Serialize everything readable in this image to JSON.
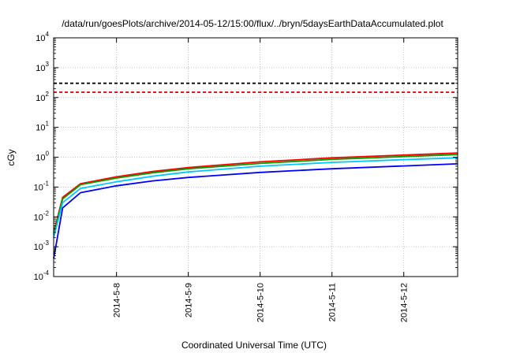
{
  "chart_data": {
    "type": "line",
    "title": "/data/run/goesPlots/archive/2014-05-12/15:00/flux/../bryn/5daysEarthDataAccumulated.plot",
    "xlabel": "Coordinated Universal Time (UTC)",
    "ylabel": "cGy",
    "yscale": "log",
    "ylim": [
      0.0001,
      10000
    ],
    "xlim": [
      "2014-05-07 03:00",
      "2014-05-12 18:00"
    ],
    "x_ticks": [
      "2014-5-8",
      "2014-5-9",
      "2014-5-10",
      "2014-5-11",
      "2014-5-12"
    ],
    "y_ticks": [
      {
        "base": "10",
        "exp": "-4",
        "value": 0.0001
      },
      {
        "base": "10",
        "exp": "-3",
        "value": 0.001
      },
      {
        "base": "10",
        "exp": "-2",
        "value": 0.01
      },
      {
        "base": "10",
        "exp": "-1",
        "value": 0.1
      },
      {
        "base": "10",
        "exp": "0",
        "value": 1
      },
      {
        "base": "10",
        "exp": "1",
        "value": 10
      },
      {
        "base": "10",
        "exp": "2",
        "value": 100
      },
      {
        "base": "10",
        "exp": "3",
        "value": 1000
      },
      {
        "base": "10",
        "exp": "4",
        "value": 10000
      }
    ],
    "grid": true,
    "threshold_lines": [
      {
        "value": 300,
        "color": "#000000",
        "style": "dashed"
      },
      {
        "value": 150,
        "color": "#ff0000",
        "style": "dashed"
      }
    ],
    "series": [
      {
        "color": "#ff0000",
        "x": [
          "2014-05-07 03:00",
          "2014-05-07 06:00",
          "2014-05-07 12:00",
          "2014-05-08 00:00",
          "2014-05-08 12:00",
          "2014-05-09 00:00",
          "2014-05-10 00:00",
          "2014-05-11 00:00",
          "2014-05-12 00:00",
          "2014-05-12 18:00"
        ],
        "y": [
          0.003,
          0.045,
          0.13,
          0.22,
          0.33,
          0.45,
          0.7,
          0.95,
          1.18,
          1.38
        ]
      },
      {
        "color": "#00a000",
        "x": [
          "2014-05-07 03:00",
          "2014-05-07 06:00",
          "2014-05-07 12:00",
          "2014-05-08 00:00",
          "2014-05-08 12:00",
          "2014-05-09 00:00",
          "2014-05-10 00:00",
          "2014-05-11 00:00",
          "2014-05-12 00:00",
          "2014-05-12 18:00"
        ],
        "y": [
          0.0025,
          0.04,
          0.12,
          0.2,
          0.3,
          0.41,
          0.62,
          0.85,
          1.05,
          1.22
        ]
      },
      {
        "color": "#00c8ff",
        "x": [
          "2014-05-07 03:00",
          "2014-05-07 06:00",
          "2014-05-07 12:00",
          "2014-05-08 00:00",
          "2014-05-08 12:00",
          "2014-05-09 00:00",
          "2014-05-10 00:00",
          "2014-05-11 00:00",
          "2014-05-12 00:00",
          "2014-05-12 18:00"
        ],
        "y": [
          0.002,
          0.03,
          0.09,
          0.15,
          0.23,
          0.32,
          0.5,
          0.67,
          0.83,
          0.95
        ]
      },
      {
        "color": "#0000ff",
        "x": [
          "2014-05-07 03:00",
          "2014-05-07 06:00",
          "2014-05-07 12:00",
          "2014-05-08 00:00",
          "2014-05-08 12:00",
          "2014-05-09 00:00",
          "2014-05-10 00:00",
          "2014-05-11 00:00",
          "2014-05-12 00:00",
          "2014-05-12 18:00"
        ],
        "y": [
          0.0004,
          0.02,
          0.065,
          0.11,
          0.16,
          0.21,
          0.31,
          0.41,
          0.51,
          0.6
        ]
      }
    ]
  }
}
